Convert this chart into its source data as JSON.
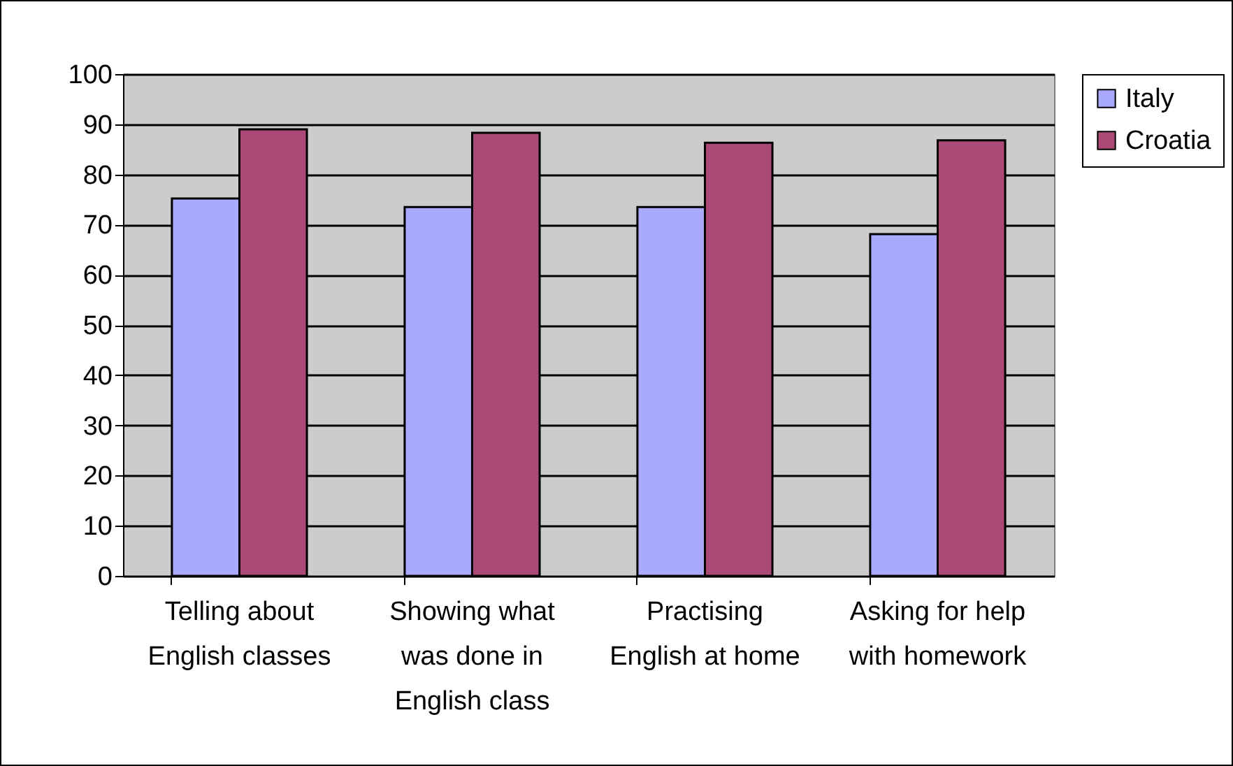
{
  "chart_data": {
    "type": "bar",
    "categories": [
      "Telling about English classes",
      "Showing what was done in English class",
      "Practising English at home",
      "Asking for help with homework"
    ],
    "series": [
      {
        "name": "Italy",
        "color": "#a9aaff",
        "values": [
          75.2,
          73.5,
          73.5,
          68.1
        ]
      },
      {
        "name": "Croatia",
        "color": "#a84a75",
        "values": [
          89.0,
          88.3,
          86.3,
          86.8
        ]
      }
    ],
    "ylim": [
      0,
      100
    ],
    "yticks": [
      0,
      10,
      20,
      30,
      40,
      50,
      60,
      70,
      80,
      90,
      100
    ],
    "grid": "y",
    "legend": "right"
  }
}
